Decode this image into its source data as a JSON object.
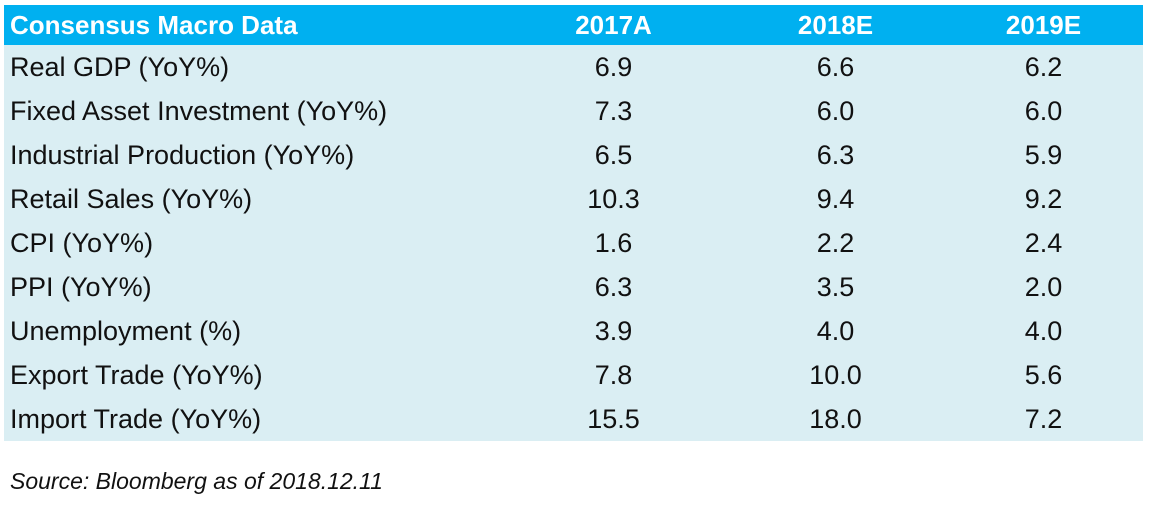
{
  "table": {
    "headers": [
      "Consensus Macro Data",
      "2017A",
      "2018E",
      "2019E"
    ],
    "header_color": "#00b0f0",
    "row_color": "#daeef3",
    "rows": [
      {
        "label": "Real GDP (YoY%)",
        "values": [
          "6.9",
          "6.6",
          "6.2"
        ]
      },
      {
        "label": "Fixed Asset Investment (YoY%)",
        "values": [
          "7.3",
          "6.0",
          "6.0"
        ]
      },
      {
        "label": "Industrial Production (YoY%)",
        "values": [
          "6.5",
          "6.3",
          "5.9"
        ]
      },
      {
        "label": "Retail Sales (YoY%)",
        "values": [
          "10.3",
          "9.4",
          "9.2"
        ]
      },
      {
        "label": "CPI (YoY%)",
        "values": [
          "1.6",
          "2.2",
          "2.4"
        ]
      },
      {
        "label": "PPI (YoY%)",
        "values": [
          "6.3",
          "3.5",
          "2.0"
        ]
      },
      {
        "label": "Unemployment (%)",
        "values": [
          "3.9",
          "4.0",
          "4.0"
        ]
      },
      {
        "label": "Export Trade (YoY%)",
        "values": [
          "7.8",
          "10.0",
          "5.6"
        ]
      },
      {
        "label": "Import Trade (YoY%)",
        "values": [
          "15.5",
          "18.0",
          "7.2"
        ]
      }
    ]
  },
  "source": "Source: Bloomberg as of 2018.12.11"
}
